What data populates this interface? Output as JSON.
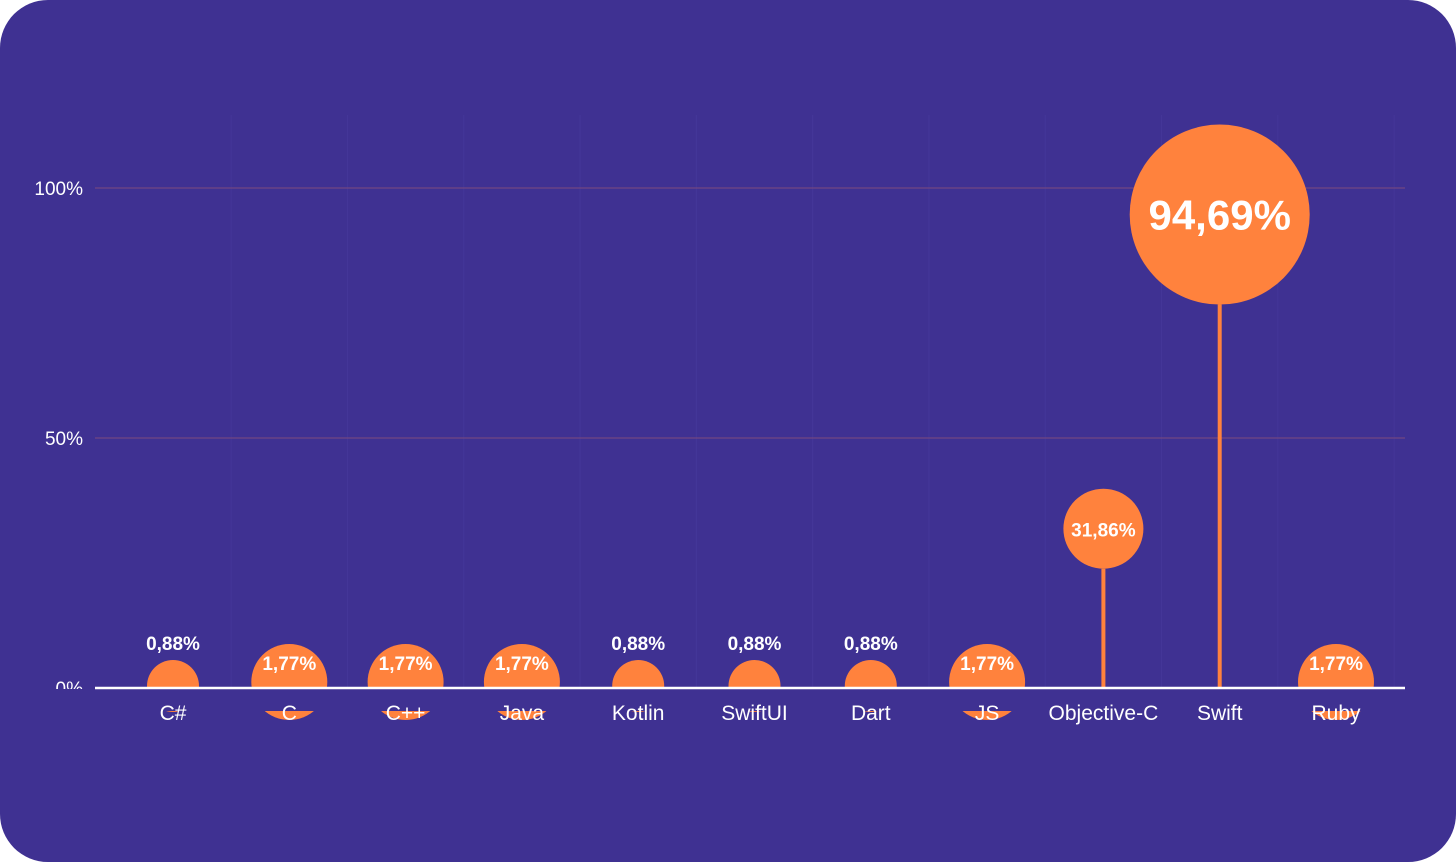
{
  "chart_data": {
    "type": "lollipop",
    "categories": [
      "C#",
      "C",
      "C++",
      "Java",
      "Kotlin",
      "SwiftUI",
      "Dart",
      "JS",
      "Objective-C",
      "Swift",
      "Ruby"
    ],
    "values": [
      0.88,
      1.77,
      1.77,
      1.77,
      0.88,
      0.88,
      0.88,
      1.77,
      31.86,
      94.69,
      1.77
    ],
    "value_labels": [
      "0,88%",
      "1,77%",
      "1,77%",
      "1,77%",
      "0,88%",
      "0,88%",
      "0,88%",
      "1,77%",
      "31,86%",
      "94,69%",
      "1,77%"
    ],
    "y_ticks": [
      {
        "value": 0,
        "label": "0%"
      },
      {
        "value": 50,
        "label": "50%"
      },
      {
        "value": 100,
        "label": "100%"
      }
    ],
    "ylim": [
      0,
      100
    ],
    "grid": true,
    "legend": "none"
  },
  "colors": {
    "background": "#3f3192",
    "marker": "#ff823d",
    "gridline": "#7c4a7e",
    "axis": "#ffffff",
    "text": "#ffffff"
  }
}
